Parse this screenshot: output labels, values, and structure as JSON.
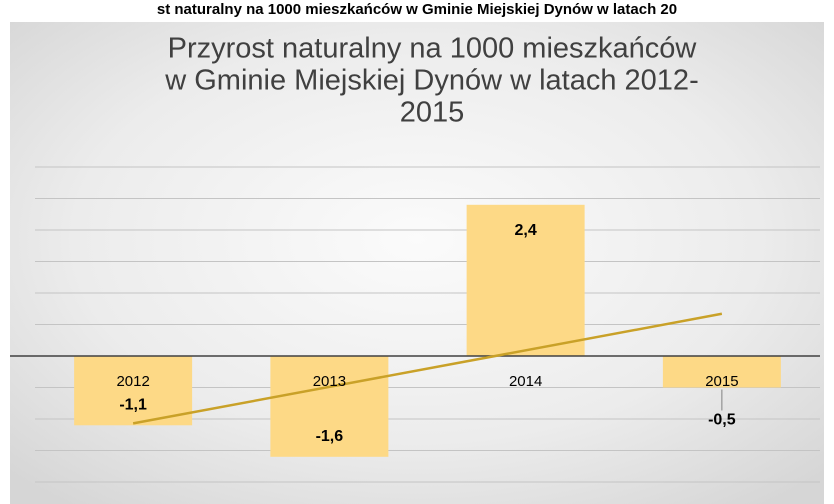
{
  "header": "st naturalny na 1000 mieszkańców w Gminie Miejskiej Dynów w latach 20",
  "chart_data": {
    "type": "bar",
    "title": [
      "Przyrost naturalny na 1000 mieszkańców",
      "w Gminie Miejskiej Dynów w latach 2012-",
      "2015"
    ],
    "categories": [
      "2012",
      "2013",
      "2014",
      "2015"
    ],
    "values": [
      -1.1,
      -1.6,
      2.4,
      -0.5
    ],
    "value_labels": [
      "-1,1",
      "-1,6",
      "2,4",
      "-0,5"
    ],
    "color": "#fdd986",
    "trendline": {
      "type": "linear",
      "color": "#c9a128"
    },
    "ylim": [
      -2,
      3
    ],
    "yticks": [
      -2,
      -1.5,
      -1,
      -0.5,
      0,
      0.5,
      1,
      1.5,
      2,
      2.5,
      3
    ],
    "grid": true
  }
}
